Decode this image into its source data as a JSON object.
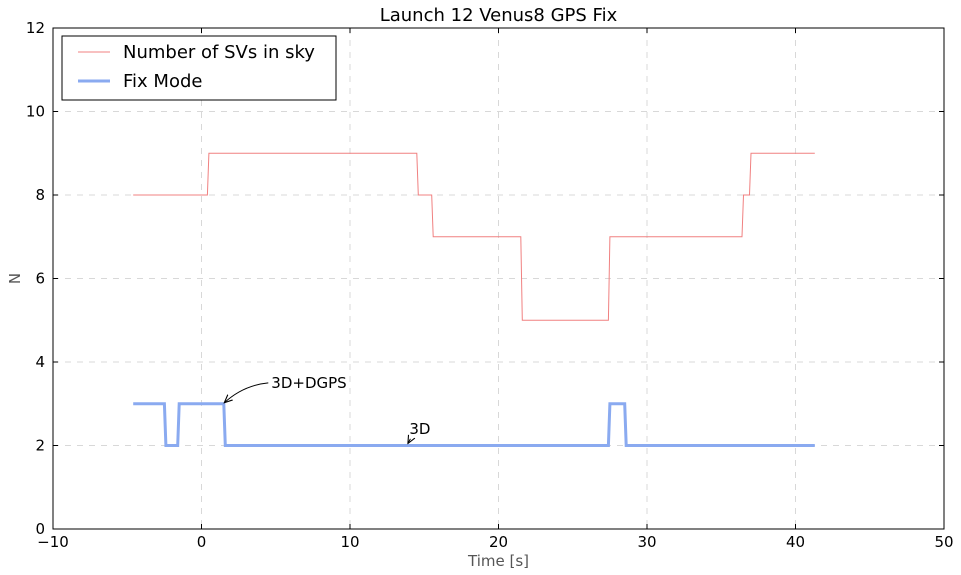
{
  "chart_data": {
    "type": "line",
    "title": "Launch 12 Venus8 GPS Fix",
    "xlabel": "Time [s]",
    "ylabel": "N",
    "xlim": [
      -10,
      50
    ],
    "ylim": [
      0,
      12
    ],
    "xticks": [
      -10,
      0,
      10,
      20,
      30,
      40,
      50
    ],
    "xtick_labels": [
      "−10",
      "0",
      "10",
      "20",
      "30",
      "40",
      "50"
    ],
    "yticks": [
      0,
      2,
      4,
      6,
      8,
      10,
      12
    ],
    "ytick_labels": [
      "0",
      "2",
      "4",
      "6",
      "8",
      "10",
      "12"
    ],
    "grid": true,
    "legend_position": "top-left",
    "series": [
      {
        "name": "Number of SVs in sky",
        "color": "#f08080",
        "line_width": "thin",
        "x": [
          -4.6,
          0.4,
          0.5,
          14.5,
          14.6,
          15.5,
          15.6,
          21.5,
          21.6,
          27.4,
          27.5,
          36.4,
          36.5,
          36.9,
          37.0,
          41.3
        ],
        "y": [
          8,
          8,
          9,
          9,
          8,
          8,
          7,
          7,
          5,
          5,
          7,
          7,
          8,
          8,
          9,
          9
        ]
      },
      {
        "name": "Fix Mode",
        "color": "#8aaaf0",
        "line_width": "thick",
        "x": [
          -4.6,
          -2.5,
          -2.4,
          -1.6,
          -1.5,
          1.5,
          1.6,
          27.4,
          27.5,
          28.5,
          28.6,
          41.3
        ],
        "y": [
          3,
          3,
          2,
          2,
          3,
          3,
          2,
          2,
          3,
          3,
          2,
          2
        ]
      }
    ],
    "annotations": [
      {
        "text": "3D+DGPS",
        "xy": [
          1.4,
          3.0
        ],
        "xytext": [
          4.7,
          3.5
        ]
      },
      {
        "text": "3D",
        "xy": [
          13.9,
          2.0
        ],
        "xytext": [
          14.0,
          2.4
        ]
      }
    ]
  }
}
